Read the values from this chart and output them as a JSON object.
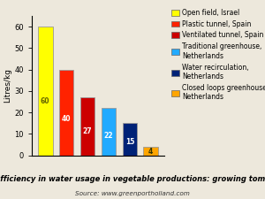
{
  "legend_labels": [
    "Open field, Israel",
    "Plastic tunnel, Spain",
    "Ventilated tunnel, Spain",
    "Traditional greenhouse,\nNetherlands",
    "Water recirculation,\nNetherlands",
    "Closed loops greenhouse,\nNetherlands"
  ],
  "values": [
    60,
    40,
    27,
    22,
    15,
    4
  ],
  "bar_colors": [
    "#FFFF00",
    "#FF2200",
    "#CC0000",
    "#22AAFF",
    "#002277",
    "#FFA500"
  ],
  "bar_edge_colors": [
    "#999999",
    "#999999",
    "#999999",
    "#999999",
    "#999999",
    "#999999"
  ],
  "value_colors": [
    "#666600",
    "#FFFFFF",
    "#FFFFFF",
    "#FFFFFF",
    "#FFFFFF",
    "#333300"
  ],
  "ylabel": "Litres/kg",
  "ylim": [
    0,
    65
  ],
  "yticks": [
    0,
    10,
    20,
    30,
    40,
    50,
    60
  ],
  "title": "Fig.  Efficiency in water usage in vegetable productions: growing tomatoes.",
  "source": "Source: www.greenportholland.com",
  "background_color": "#EDE8DC",
  "title_fontsize": 6.0,
  "source_fontsize": 5.2,
  "ylabel_fontsize": 6.5,
  "value_fontsize": 5.5,
  "legend_fontsize": 5.5,
  "tick_fontsize": 6.0
}
